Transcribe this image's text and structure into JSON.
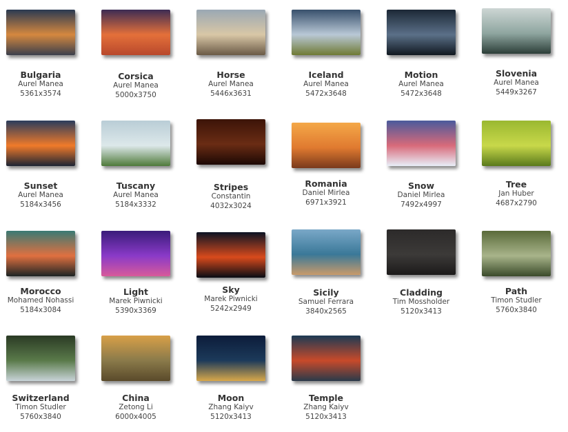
{
  "wallpapers": [
    {
      "name": "Bulgaria",
      "author": "Aurel Manea",
      "size": "5361x3574",
      "colors": [
        "#2a3a52",
        "#d5883f",
        "#3b3f4c"
      ]
    },
    {
      "name": "Corsica",
      "author": "Aurel Manea",
      "size": "5000x3750",
      "colors": [
        "#3c2c54",
        "#e4703a",
        "#b8482c"
      ]
    },
    {
      "name": "Horse",
      "author": "Aurel Manea",
      "size": "5446x3631",
      "colors": [
        "#9aa8b4",
        "#d9c7a6",
        "#6a5a46"
      ]
    },
    {
      "name": "Iceland",
      "author": "Aurel Manea",
      "size": "5472x3648",
      "colors": [
        "#38506c",
        "#b9c8d6",
        "#6f7a34"
      ]
    },
    {
      "name": "Motion",
      "author": "Aurel Manea",
      "size": "5472x3648",
      "colors": [
        "#1c2836",
        "#5b7088",
        "#101820"
      ]
    },
    {
      "name": "Slovenia",
      "author": "Aurel Manea",
      "size": "5449x3267",
      "colors": [
        "#cdd6d4",
        "#8fa6a0",
        "#2c3e38"
      ]
    },
    {
      "name": "Sunset",
      "author": "Aurel Manea",
      "size": "5184x3456",
      "colors": [
        "#2a3c5c",
        "#f07a2a",
        "#1c2434"
      ]
    },
    {
      "name": "Tuscany",
      "author": "Aurel Manea",
      "size": "5184x3332",
      "colors": [
        "#b9cdd6",
        "#dde8ea",
        "#4f7a3a"
      ]
    },
    {
      "name": "Stripes",
      "author": "Constantin",
      "size": "4032x3024",
      "colors": [
        "#3c1408",
        "#6a2c14",
        "#1c0804"
      ]
    },
    {
      "name": "Romania",
      "author": "Daniel Mirlea",
      "size": "6971x3921",
      "colors": [
        "#f4a848",
        "#e07a30",
        "#7a3a1c"
      ]
    },
    {
      "name": "Snow",
      "author": "Daniel Mirlea",
      "size": "7492x4997",
      "colors": [
        "#4a5a9c",
        "#d86a7a",
        "#e8eef8"
      ]
    },
    {
      "name": "Tree",
      "author": "Jan Huber",
      "size": "4687x2790",
      "colors": [
        "#9ab830",
        "#c8d84a",
        "#5a7a1c"
      ]
    },
    {
      "name": "Morocco",
      "author": "Mohamed Nohassi",
      "size": "5184x3084",
      "colors": [
        "#3a7a74",
        "#e07040",
        "#1c2424"
      ]
    },
    {
      "name": "Light",
      "author": "Marek Piwnicki",
      "size": "5390x3369",
      "colors": [
        "#3a1c7a",
        "#8a3ac8",
        "#d85a9a"
      ]
    },
    {
      "name": "Sky",
      "author": "Marek Piwnicki",
      "size": "5242x2949",
      "colors": [
        "#0c1424",
        "#d84a1c",
        "#080c14"
      ]
    },
    {
      "name": "Sicily",
      "author": "Samuel Ferrara",
      "size": "3840x2565",
      "colors": [
        "#7aa8c8",
        "#3a7898",
        "#c89a6a"
      ]
    },
    {
      "name": "Cladding",
      "author": "Tim Mossholder",
      "size": "5120x3413",
      "colors": [
        "#2c2a2a",
        "#3c3a38",
        "#1c1a1a"
      ]
    },
    {
      "name": "Path",
      "author": "Timon Studler",
      "size": "5760x3840",
      "colors": [
        "#5a6a3a",
        "#a8b48a",
        "#3a4a2a"
      ]
    },
    {
      "name": "Switzerland",
      "author": "Timon Studler",
      "size": "5760x3840",
      "colors": [
        "#2a3a24",
        "#5a7a4a",
        "#c8d4d8"
      ]
    },
    {
      "name": "China",
      "author": "Zetong Li",
      "size": "6000x4005",
      "colors": [
        "#d8a048",
        "#8a7a4a",
        "#5a4a2a"
      ]
    },
    {
      "name": "Moon",
      "author": "Zhang Kaiyv",
      "size": "5120x3413",
      "colors": [
        "#0c1c3a",
        "#1c3a5a",
        "#d8a84a"
      ]
    },
    {
      "name": "Temple",
      "author": "Zhang Kaiyv",
      "size": "5120x3413",
      "colors": [
        "#1c3a54",
        "#c84a2a",
        "#2a3a4a"
      ]
    }
  ]
}
